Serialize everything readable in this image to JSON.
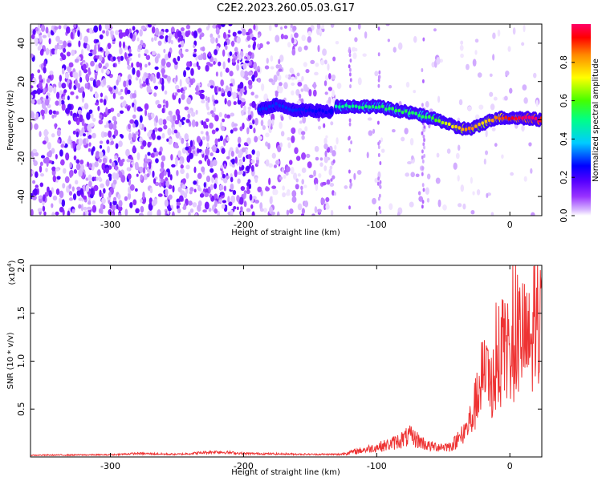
{
  "figure_title": "C2E2.2023.260.05.03.G17",
  "colors": {
    "snr_line": "#ee3333",
    "colormap": [
      "#ffffff",
      "#e0c8ff",
      "#a070ff",
      "#6a00ff",
      "#0000ff",
      "#00c8ff",
      "#00ff66",
      "#66ff00",
      "#ffff00",
      "#ff8000",
      "#ff0000",
      "#ff0066"
    ]
  },
  "chart_data": [
    {
      "type": "heatmap",
      "title": "",
      "xlabel": "Height of straight line (km)",
      "ylabel": "Frequency (Hz)",
      "xlim": [
        -360,
        24
      ],
      "ylim": [
        -50,
        50
      ],
      "xticks": [
        -300,
        -200,
        -100,
        0
      ],
      "xtick_labels": [
        "-300",
        "-200",
        "-100",
        "0"
      ],
      "yticks": [
        -40,
        -20,
        0,
        20,
        40
      ],
      "ytick_labels": [
        "-40",
        "-20",
        "0",
        "20",
        "40"
      ],
      "colorbar": {
        "label": "Normalized spectral amplitude",
        "range": [
          0,
          1
        ],
        "ticks": [
          0.0,
          0.2,
          0.4,
          0.6,
          0.8
        ],
        "tick_labels": [
          "0.0",
          "0.2",
          "0.4",
          "0.6",
          "0.8"
        ]
      },
      "ridge": [
        {
          "x": -185,
          "y": 6,
          "amp": 0.24
        },
        {
          "x": -175,
          "y": 8,
          "amp": 0.24
        },
        {
          "x": -165,
          "y": 5,
          "amp": 0.24
        },
        {
          "x": -150,
          "y": 5,
          "amp": 0.22
        },
        {
          "x": -135,
          "y": 4,
          "amp": 0.2
        },
        {
          "x": -130,
          "y": 7,
          "amp": 0.44
        },
        {
          "x": -115,
          "y": 7,
          "amp": 0.46
        },
        {
          "x": -100,
          "y": 7,
          "amp": 0.48
        },
        {
          "x": -85,
          "y": 5,
          "amp": 0.5
        },
        {
          "x": -70,
          "y": 3,
          "amp": 0.48
        },
        {
          "x": -60,
          "y": 1,
          "amp": 0.5
        },
        {
          "x": -50,
          "y": -1,
          "amp": 0.62
        },
        {
          "x": -40,
          "y": -4,
          "amp": 0.72
        },
        {
          "x": -30,
          "y": -5,
          "amp": 0.8
        },
        {
          "x": -20,
          "y": -2,
          "amp": 0.7
        },
        {
          "x": -10,
          "y": 1,
          "amp": 0.8
        },
        {
          "x": 0,
          "y": 1,
          "amp": 0.88
        },
        {
          "x": 10,
          "y": 1,
          "amp": 0.94
        },
        {
          "x": 24,
          "y": 0,
          "amp": 1.0
        }
      ]
    },
    {
      "type": "line",
      "title": "",
      "xlabel": "Height of straight line (km)",
      "ylabel": "SNR (10 * v/v)",
      "y_scale_label": "(x10",
      "y_scale_exponent": "4",
      "y_scale_suffix": ")",
      "xlim": [
        -360,
        24
      ],
      "ylim": [
        0,
        2.0
      ],
      "xticks": [
        -300,
        -200,
        -100,
        0
      ],
      "xtick_labels": [
        "-300",
        "-200",
        "-100",
        "0"
      ],
      "yticks": [
        0.5,
        1.0,
        1.5,
        2.0
      ],
      "ytick_labels": [
        "0.5",
        "1.0",
        "1.5",
        "2.0"
      ],
      "series": [
        {
          "values_envelope": [
            {
              "x": -360,
              "y": 0.02
            },
            {
              "x": -300,
              "y": 0.025
            },
            {
              "x": -280,
              "y": 0.04
            },
            {
              "x": -250,
              "y": 0.03
            },
            {
              "x": -220,
              "y": 0.06
            },
            {
              "x": -200,
              "y": 0.04
            },
            {
              "x": -150,
              "y": 0.03
            },
            {
              "x": -130,
              "y": 0.03
            },
            {
              "x": -110,
              "y": 0.1
            },
            {
              "x": -90,
              "y": 0.18
            },
            {
              "x": -75,
              "y": 0.3
            },
            {
              "x": -60,
              "y": 0.15
            },
            {
              "x": -45,
              "y": 0.15
            },
            {
              "x": -35,
              "y": 0.3
            },
            {
              "x": -28,
              "y": 0.6
            },
            {
              "x": -20,
              "y": 1.2
            },
            {
              "x": -15,
              "y": 1.0
            },
            {
              "x": -8,
              "y": 1.3
            },
            {
              "x": 0,
              "y": 1.45
            },
            {
              "x": 8,
              "y": 1.75
            },
            {
              "x": 15,
              "y": 1.6
            },
            {
              "x": 24,
              "y": 1.8
            }
          ]
        }
      ]
    }
  ]
}
